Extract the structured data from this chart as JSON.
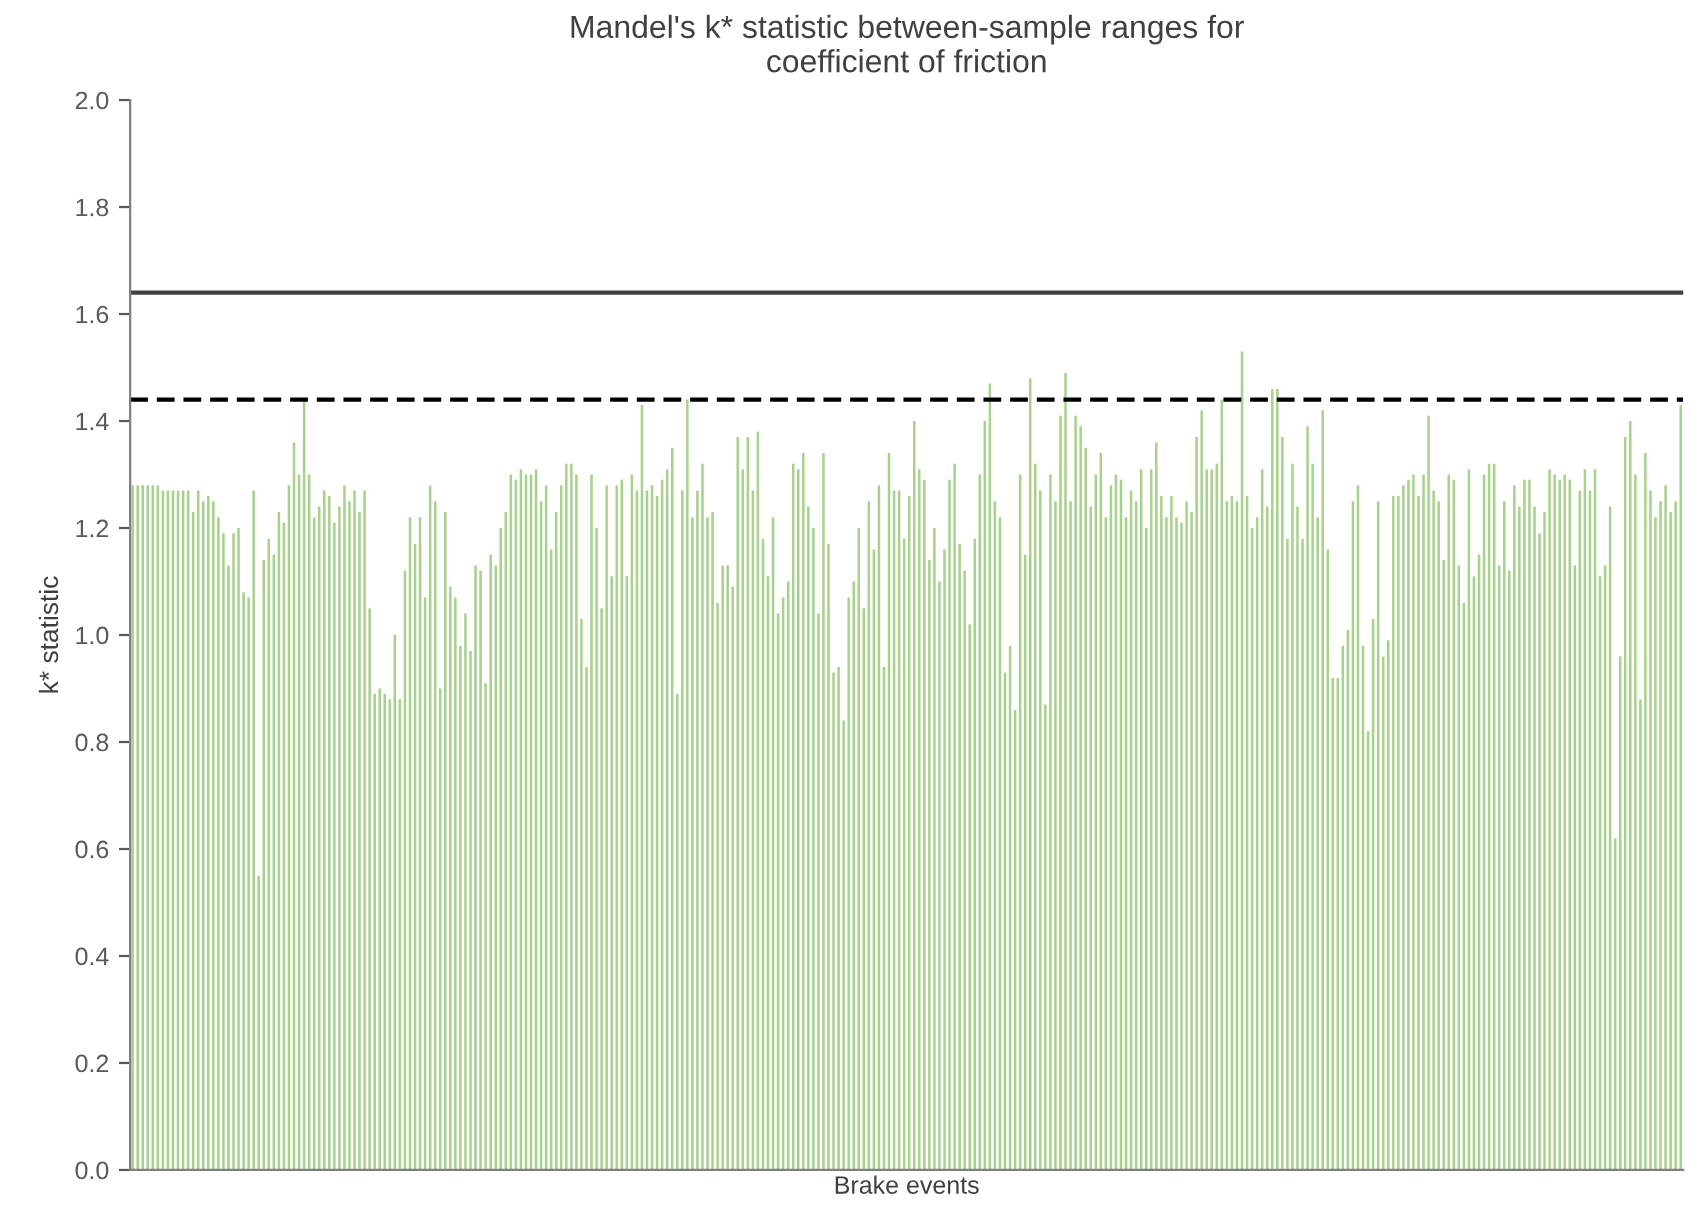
{
  "chart_data": {
    "type": "bar",
    "title": "Mandel's k* statistic between-sample ranges for\ncoefficient of friction",
    "xlabel": "Brake events",
    "ylabel": "k* statistic",
    "categories": [
      null,
      null,
      null,
      null,
      null,
      null,
      null,
      null,
      null,
      null,
      null,
      null,
      null,
      null,
      null,
      null,
      null,
      null,
      null,
      null,
      null,
      null,
      null,
      null,
      null,
      null,
      null,
      null,
      null,
      null,
      null,
      null,
      null,
      null,
      null,
      null,
      null,
      null,
      null,
      null,
      null,
      null,
      null,
      null,
      null,
      null,
      null,
      null,
      null,
      null,
      null,
      null,
      null,
      null,
      null,
      null,
      null,
      null,
      null,
      null,
      null,
      null,
      null,
      null,
      null,
      null,
      null,
      null,
      null,
      null,
      null,
      null,
      null,
      null,
      null,
      null,
      null,
      null,
      null,
      null,
      null,
      null,
      null,
      null,
      null,
      null,
      null,
      null,
      null,
      null,
      null,
      null,
      null,
      null,
      null,
      null,
      null,
      null,
      null,
      null,
      null,
      null,
      null,
      null,
      null,
      null,
      null,
      null,
      null,
      null,
      null,
      null,
      null,
      null,
      null,
      null,
      null,
      null,
      null,
      null,
      null,
      null,
      null,
      null,
      null,
      null,
      null,
      null,
      null,
      null,
      null,
      null,
      null,
      null,
      null,
      null,
      null,
      null,
      null,
      null,
      null,
      null,
      null,
      null,
      null,
      null,
      null,
      null,
      null,
      null,
      null,
      null,
      null,
      null,
      null,
      null,
      null,
      null,
      null,
      null,
      null,
      null,
      null,
      null,
      null,
      null,
      null,
      null,
      null,
      null,
      null,
      null,
      null,
      null,
      null,
      null,
      null,
      null,
      null,
      null,
      null,
      null,
      null,
      null,
      null,
      null,
      null,
      null,
      null,
      null,
      null,
      null,
      null,
      null,
      null,
      null,
      null,
      null,
      null,
      null,
      null,
      null,
      null,
      null,
      null,
      null,
      null,
      null,
      null,
      null,
      null,
      null,
      null,
      null,
      null,
      null,
      null,
      null,
      null,
      null,
      null,
      null,
      null,
      null,
      null,
      null,
      null,
      null,
      null,
      null,
      null,
      null,
      null,
      null,
      null,
      null,
      null,
      null,
      null,
      null,
      null,
      null,
      null,
      null,
      null,
      null,
      null,
      null,
      null,
      null,
      null,
      null,
      null,
      null,
      null,
      null,
      null,
      null,
      null,
      null,
      null,
      null,
      null,
      null,
      null,
      null,
      null,
      null,
      null,
      null,
      null,
      null,
      null,
      null,
      null,
      null,
      null,
      null,
      null,
      null,
      null,
      null,
      null,
      null,
      null,
      null,
      null,
      null,
      null,
      null,
      null,
      null,
      null,
      null,
      null,
      null,
      null,
      null,
      null,
      null,
      null,
      null,
      null,
      null,
      null,
      null,
      null,
      null
    ],
    "values": [
      1.28,
      1.28,
      1.28,
      1.28,
      1.28,
      1.28,
      1.27,
      1.27,
      1.27,
      1.27,
      1.27,
      1.27,
      1.23,
      1.27,
      1.25,
      1.26,
      1.25,
      1.22,
      1.19,
      1.13,
      1.19,
      1.2,
      1.08,
      1.07,
      1.27,
      0.55,
      1.14,
      1.18,
      1.15,
      1.23,
      1.21,
      1.28,
      1.36,
      1.3,
      1.44,
      1.3,
      1.22,
      1.24,
      1.27,
      1.26,
      1.21,
      1.24,
      1.28,
      1.25,
      1.27,
      1.23,
      1.27,
      1.05,
      0.89,
      0.9,
      0.89,
      0.88,
      1.0,
      0.88,
      1.12,
      1.22,
      1.17,
      1.22,
      1.07,
      1.28,
      1.25,
      0.9,
      1.23,
      1.09,
      1.07,
      0.98,
      1.04,
      0.97,
      1.13,
      1.12,
      0.91,
      1.15,
      1.13,
      1.2,
      1.23,
      1.3,
      1.29,
      1.31,
      1.3,
      1.3,
      1.31,
      1.25,
      1.28,
      1.16,
      1.23,
      1.28,
      1.32,
      1.32,
      1.3,
      1.03,
      0.94,
      1.3,
      1.2,
      1.05,
      1.28,
      1.11,
      1.28,
      1.29,
      1.11,
      1.3,
      1.27,
      1.43,
      1.27,
      1.28,
      1.26,
      1.29,
      1.31,
      1.35,
      0.89,
      1.27,
      1.44,
      1.22,
      1.27,
      1.32,
      1.22,
      1.23,
      1.06,
      1.13,
      1.13,
      1.09,
      1.37,
      1.31,
      1.37,
      1.27,
      1.38,
      1.18,
      1.11,
      1.22,
      1.04,
      1.07,
      1.1,
      1.32,
      1.31,
      1.34,
      1.24,
      1.2,
      1.04,
      1.34,
      1.17,
      0.93,
      0.94,
      0.84,
      1.07,
      1.1,
      1.2,
      1.05,
      1.25,
      1.16,
      1.28,
      0.94,
      1.34,
      1.27,
      1.27,
      1.18,
      1.26,
      1.4,
      1.31,
      1.29,
      1.14,
      1.2,
      1.1,
      1.16,
      1.29,
      1.32,
      1.17,
      1.12,
      1.02,
      1.18,
      1.3,
      1.4,
      1.47,
      1.25,
      1.22,
      0.93,
      0.98,
      0.86,
      1.3,
      1.15,
      1.48,
      1.32,
      1.27,
      0.87,
      1.3,
      1.25,
      1.41,
      1.49,
      1.25,
      1.41,
      1.39,
      1.35,
      1.24,
      1.3,
      1.34,
      1.22,
      1.28,
      1.3,
      1.29,
      1.22,
      1.27,
      1.25,
      1.31,
      1.2,
      1.31,
      1.36,
      1.26,
      1.22,
      1.26,
      1.22,
      1.21,
      1.25,
      1.23,
      1.37,
      1.42,
      1.31,
      1.31,
      1.32,
      1.44,
      1.25,
      1.26,
      1.25,
      1.53,
      1.26,
      1.2,
      1.22,
      1.31,
      1.24,
      1.46,
      1.46,
      1.37,
      1.18,
      1.32,
      1.24,
      1.18,
      1.39,
      1.32,
      1.22,
      1.42,
      1.16,
      0.92,
      0.92,
      0.98,
      1.01,
      1.25,
      1.28,
      0.98,
      0.82,
      1.03,
      1.25,
      0.96,
      0.99,
      1.26,
      1.26,
      1.28,
      1.29,
      1.3,
      1.26,
      1.3,
      1.41,
      1.27,
      1.25,
      1.14,
      1.3,
      1.29,
      1.13,
      1.06,
      1.31,
      1.11,
      1.15,
      1.3,
      1.32,
      1.32,
      1.13,
      1.25,
      1.12,
      1.28,
      1.24,
      1.29,
      1.29,
      1.24,
      1.19,
      1.23,
      1.31,
      1.3,
      1.29,
      1.3,
      1.29,
      1.13,
      1.27,
      1.31,
      1.27,
      1.31,
      1.11,
      1.13,
      1.24,
      0.62,
      0.96,
      1.37,
      1.4,
      1.3,
      0.88,
      1.34,
      1.27,
      1.22,
      1.25,
      1.28,
      1.23,
      1.25,
      1.43
    ],
    "color": "#a9d18e",
    "ylim": [
      0,
      2.0
    ],
    "yticks": [
      {
        "value": 0,
        "label": "0.0"
      },
      {
        "value": 0.2,
        "label": "0.2"
      },
      {
        "value": 0.4,
        "label": "0.4"
      },
      {
        "value": 0.6,
        "label": "0.6"
      },
      {
        "value": 0.8,
        "label": "0.8"
      },
      {
        "value": 1.0,
        "label": "1.0"
      },
      {
        "value": 1.2,
        "label": "1.2"
      },
      {
        "value": 1.4,
        "label": "1.4"
      },
      {
        "value": 1.6,
        "label": "1.6"
      },
      {
        "value": 1.8,
        "label": "1.8"
      },
      {
        "value": 2.0,
        "label": "2.0"
      }
    ],
    "tick_labels": "y",
    "ref_lines": [
      {
        "axis": "y",
        "value": 1.64,
        "color": "#404040",
        "line_style": "solid"
      },
      {
        "axis": "y",
        "value": 1.44,
        "color": "#000000",
        "line_style": "dashed"
      }
    ],
    "grid": false,
    "legend": false
  }
}
